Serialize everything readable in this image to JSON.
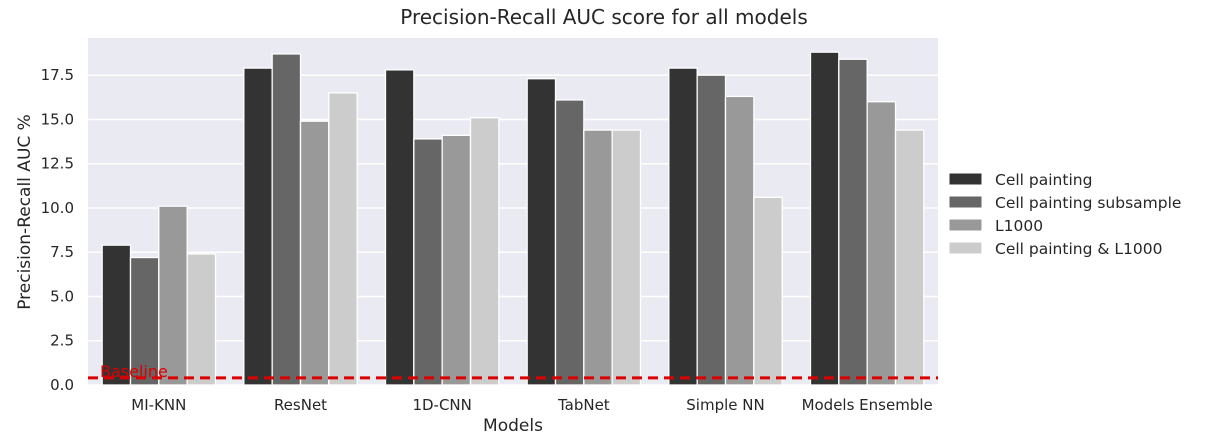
{
  "chart_data": {
    "type": "bar",
    "title": "Precision-Recall AUC score for all models",
    "xlabel": "Models",
    "ylabel": "Precision-Recall AUC %",
    "ylim": [
      0,
      19.6
    ],
    "yticks": [
      "0.0",
      "2.5",
      "5.0",
      "7.5",
      "10.0",
      "12.5",
      "15.0",
      "17.5"
    ],
    "categories": [
      "MI-KNN",
      "ResNet",
      "1D-CNN",
      "TabNet",
      "Simple NN",
      "Models Ensemble"
    ],
    "series": [
      {
        "name": "Cell painting",
        "color": "#333333",
        "values": [
          7.9,
          17.9,
          17.8,
          17.3,
          17.9,
          18.8
        ]
      },
      {
        "name": "Cell painting subsample",
        "color": "#666666",
        "values": [
          7.2,
          18.7,
          13.9,
          16.1,
          17.5,
          18.4
        ]
      },
      {
        "name": "L1000",
        "color": "#999999",
        "values": [
          10.1,
          14.9,
          14.1,
          14.4,
          16.3,
          16.0
        ]
      },
      {
        "name": "Cell painting & L1000",
        "color": "#cccccc",
        "values": [
          7.4,
          16.5,
          15.1,
          14.4,
          10.6,
          14.4
        ]
      }
    ],
    "baseline": {
      "label": "Baseline",
      "value": 0.4,
      "color": "#dd0000"
    },
    "grid": true,
    "legend_position": "right"
  }
}
